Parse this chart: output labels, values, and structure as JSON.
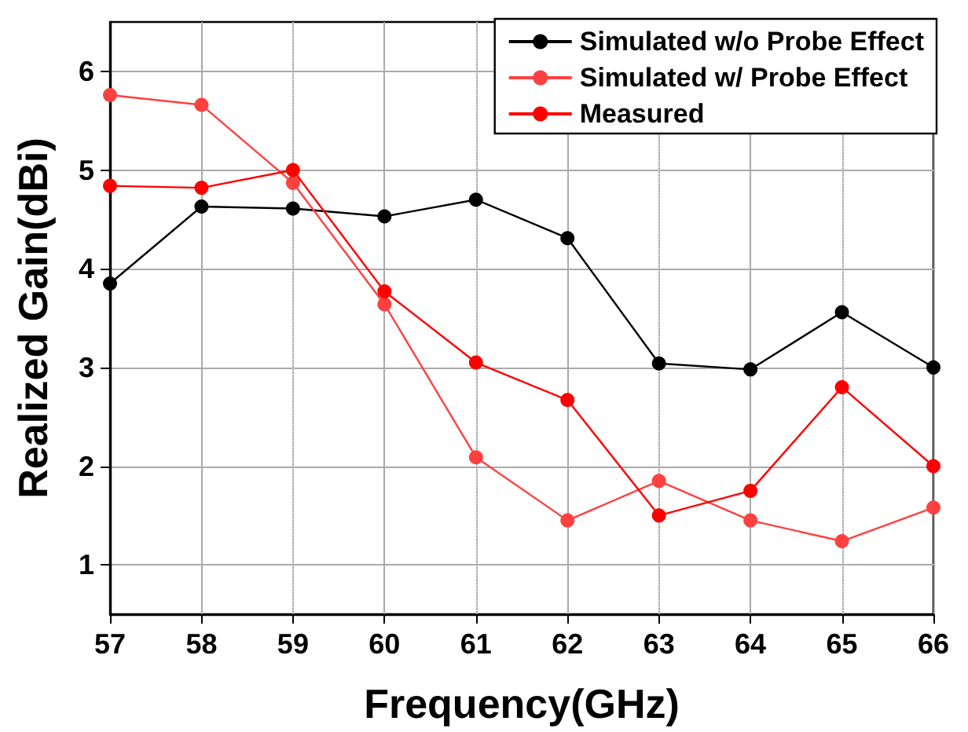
{
  "chart_data": {
    "type": "line",
    "xlabel": "Frequency(GHz)",
    "ylabel": "Realized Gain(dBi)",
    "x": [
      57,
      58,
      59,
      60,
      61,
      62,
      63,
      64,
      65,
      66
    ],
    "series": [
      {
        "name": "Simulated w/o Probe Effect",
        "color": "#000000",
        "values": [
          3.85,
          4.63,
          4.61,
          4.53,
          4.7,
          4.31,
          3.04,
          2.98,
          3.56,
          3.0
        ]
      },
      {
        "name": "Simulated w/ Probe Effect",
        "color": "#ff4040",
        "values": [
          5.76,
          5.66,
          4.87,
          3.64,
          2.09,
          1.45,
          1.85,
          1.45,
          1.24,
          1.58
        ]
      },
      {
        "name": "Measured",
        "color": "#ff0000",
        "values": [
          4.84,
          4.82,
          5.0,
          3.77,
          3.05,
          2.67,
          1.5,
          1.75,
          2.8,
          2.0
        ]
      }
    ],
    "xlim": [
      57,
      66
    ],
    "xticks": [
      57,
      58,
      59,
      60,
      61,
      62,
      63,
      64,
      65,
      66
    ],
    "ylim": [
      0.5,
      6.5
    ],
    "yticks": [
      1,
      2,
      3,
      4,
      5,
      6
    ],
    "grid": true,
    "legend": "top right",
    "marker": "circle",
    "line_style": "solid"
  }
}
